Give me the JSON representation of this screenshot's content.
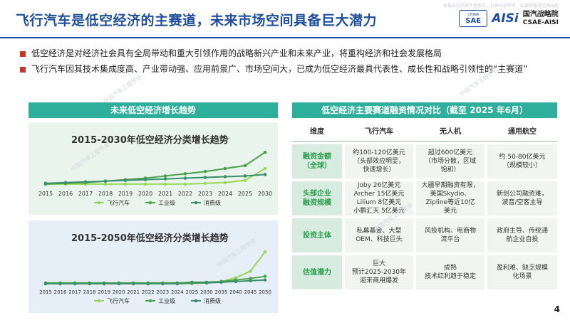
{
  "header": {
    "title": "飞行汽车是低空经济的主赛道，未来市场空间具备巨大潜力",
    "logo_china": "CHINA",
    "logo_sae": "SAE",
    "logo_aisi": "AISi",
    "logo_cn": "国汽战略院",
    "logo_en": "CSAE-AISI",
    "top_right_note": "本报告仅代表作者观点，仅供内部参考，如需转载请注明出处"
  },
  "bullets": [
    "低空经济是对经济社会具有全局带动和重大引领作用的战略新兴产业和未来产业，将重构经济和社会发展格局",
    "飞行汽车因其技术集成度高、产业带动强、应用前景广、市场空间大，已成为低空经济最具代表性、成长性和战略引领性的“主赛道”"
  ],
  "left_panel": {
    "title": "未来低空经济增长趋势"
  },
  "right_panel": {
    "title": "低空经济主要赛道融资情况对比（截至 2025 年6月）"
  },
  "chart_data": [
    {
      "type": "line",
      "title": "2015-2030年低空经济分类增长趋势",
      "x": [
        "2015",
        "2016",
        "2017",
        "2018",
        "2019",
        "2020",
        "2021",
        "2022",
        "2023",
        "2024",
        "2025",
        "2030"
      ],
      "series": [
        {
          "name": "飞行汽车",
          "values": [
            0.3,
            0.3,
            0.3,
            0.3,
            0.3,
            0.3,
            0.3,
            0.3,
            0.4,
            0.5,
            0.8,
            2.4
          ]
        },
        {
          "name": "工业级",
          "values": [
            0.3,
            0.4,
            0.5,
            0.7,
            0.9,
            1.1,
            1.4,
            1.7,
            2.0,
            2.4,
            2.8,
            4.6
          ]
        },
        {
          "name": "消费级",
          "values": [
            0.4,
            0.5,
            0.6,
            0.7,
            0.8,
            0.9,
            1.0,
            1.1,
            1.2,
            1.3,
            1.4,
            1.6
          ]
        }
      ],
      "ylim": [
        0,
        5
      ],
      "legend": "bottom",
      "colors": [
        "#9ad65a",
        "#4aa24a",
        "#3b8f6f"
      ]
    },
    {
      "type": "line",
      "title": "2015-2050年低空经济分类增长趋势",
      "x": [
        "2015",
        "2016",
        "2017",
        "2018",
        "2019",
        "2020",
        "2021",
        "2022",
        "2023",
        "2024",
        "2025",
        "2030",
        "2035",
        "2040",
        "2045",
        "2050"
      ],
      "series": [
        {
          "name": "飞行汽车",
          "values": [
            0.1,
            0.1,
            0.1,
            0.1,
            0.1,
            0.1,
            0.1,
            0.1,
            0.1,
            0.1,
            0.1,
            0.2,
            0.4,
            0.9,
            1.8,
            4.4
          ]
        },
        {
          "name": "工业级",
          "values": [
            0.2,
            0.2,
            0.2,
            0.2,
            0.2,
            0.2,
            0.2,
            0.2,
            0.2,
            0.2,
            0.3,
            0.3,
            0.4,
            0.6,
            0.8,
            1.1
          ]
        },
        {
          "name": "消费级",
          "values": [
            0.1,
            0.1,
            0.1,
            0.1,
            0.1,
            0.1,
            0.1,
            0.1,
            0.1,
            0.1,
            0.2,
            0.2,
            0.3,
            0.4,
            0.5,
            0.6
          ]
        }
      ],
      "ylim": [
        0,
        5
      ],
      "legend": "bottom",
      "colors": [
        "#9ad65a",
        "#4aa24a",
        "#3b8f6f"
      ]
    }
  ],
  "table": {
    "headers": [
      "维度",
      "飞行汽车",
      "无人机",
      "通用航空"
    ],
    "rows": [
      {
        "cat": "融资金额\n（全球）",
        "cells": [
          "约100-120亿美元\n（头部效应明显，\n快速增长）",
          "超过600亿美元\n（市场分散，区域\n饱和）",
          "约 50-80亿美元\n（规模较小）"
        ]
      },
      {
        "cat": "头部企业\n融资规模",
        "cells": [
          "Joby 26亿美元\nArcher 15亿美元\nLilium 8亿美元\n小鹏汇天 5亿美元",
          "大疆早期融资有限，\n美国Skydio、\nZipline等近10亿\n美元",
          "新创公司融资难，\n波音/空客主导"
        ]
      },
      {
        "cat": "投资主体",
        "cells": [
          "私募基金、大型\nOEM、科技巨头",
          "风投机构、电商物\n流平台",
          "政府主导、传统通\n航企业自投"
        ]
      },
      {
        "cat": "估值潜力",
        "cells": [
          "巨大\n预计2025-2030年\n迎来商用爆发",
          "成熟\n技术红利趋于稳定",
          "盈利难、缺乏规模\n化场景"
        ]
      }
    ]
  },
  "page_number": "4"
}
